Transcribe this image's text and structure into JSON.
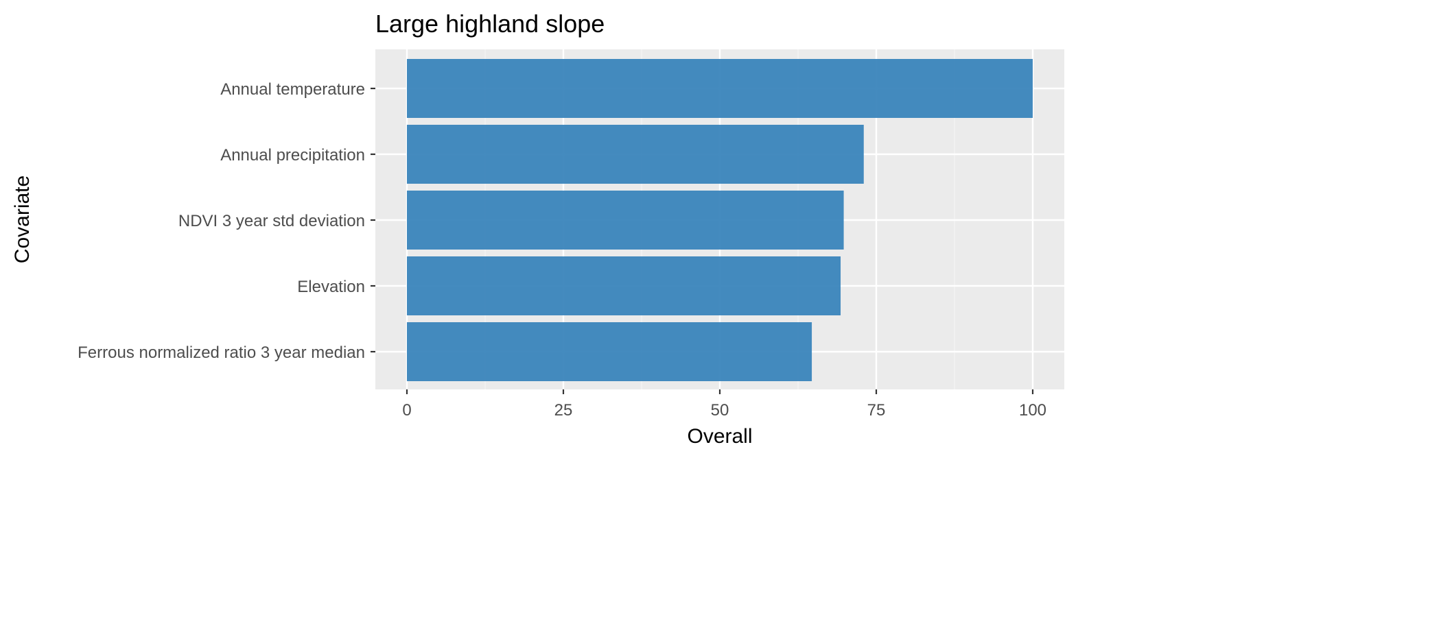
{
  "chart_data": {
    "type": "bar",
    "orientation": "horizontal",
    "title": "Large highland slope",
    "xlabel": "Overall",
    "ylabel": "Covariate",
    "categories": [
      "Annual temperature",
      "Annual precipitation",
      "NDVI 3 year std deviation",
      "Elevation",
      "Ferrous normalized ratio 3 year median"
    ],
    "values": [
      100,
      73,
      69.8,
      69.3,
      64.7
    ],
    "xlim": [
      0,
      100
    ],
    "x_ticks": [
      0,
      25,
      50,
      75,
      100
    ],
    "x_tick_labels": [
      "0",
      "25",
      "50",
      "75",
      "100"
    ],
    "grid": true,
    "legend": "none",
    "colors": {
      "bar": "#3a85bc",
      "panel_background": "#ebebeb",
      "grid_major": "#ffffff",
      "grid_minor": "#f5f5f5",
      "tick_mark": "#333333",
      "tick_label": "#4d4d4d"
    }
  }
}
